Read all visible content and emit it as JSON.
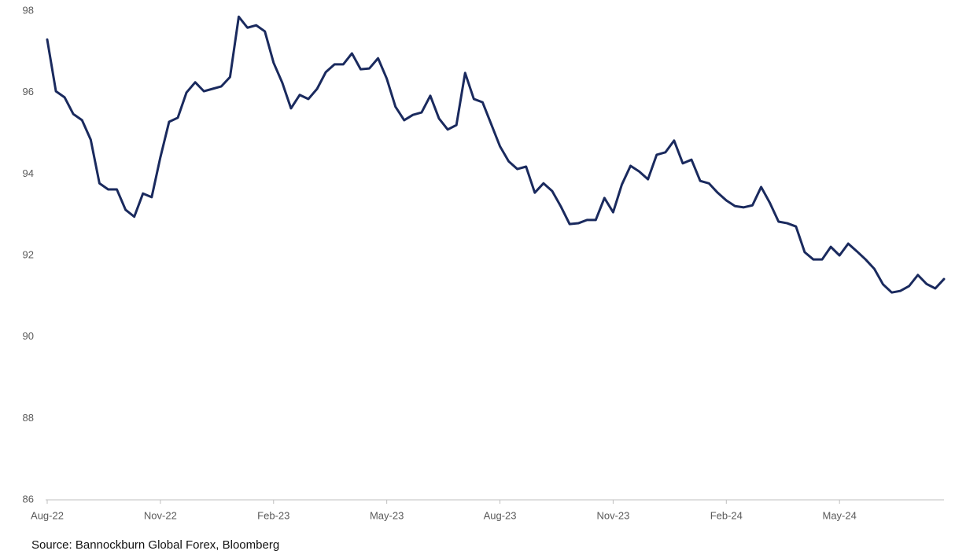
{
  "chart_data": {
    "type": "line",
    "source": "Source: Bannockburn Global Forex, Bloomberg",
    "color": "#1a2a5e",
    "grid": false,
    "ylim": [
      86,
      98
    ],
    "yticks": [
      86,
      88,
      90,
      92,
      94,
      96,
      98
    ],
    "categories": [
      "Aug-22",
      null,
      null,
      null,
      null,
      null,
      null,
      null,
      null,
      null,
      null,
      null,
      null,
      "Nov-22",
      null,
      null,
      null,
      null,
      null,
      null,
      null,
      null,
      null,
      null,
      null,
      null,
      "Feb-23",
      null,
      null,
      null,
      null,
      null,
      null,
      null,
      null,
      null,
      null,
      null,
      null,
      "May-23",
      null,
      null,
      null,
      null,
      null,
      null,
      null,
      null,
      null,
      null,
      null,
      null,
      "Aug-23",
      null,
      null,
      null,
      null,
      null,
      null,
      null,
      null,
      null,
      null,
      null,
      null,
      "Nov-23",
      null,
      null,
      null,
      null,
      null,
      null,
      null,
      null,
      null,
      null,
      null,
      null,
      "Feb-24",
      null,
      null,
      null,
      null,
      null,
      null,
      null,
      null,
      null,
      null,
      null,
      null,
      "May-24",
      null,
      null,
      null,
      null,
      null,
      null,
      null,
      null,
      null,
      null,
      null,
      null
    ],
    "values": [
      97.3,
      96.03,
      95.88,
      95.47,
      95.32,
      94.84,
      93.77,
      93.62,
      93.62,
      93.12,
      92.95,
      93.52,
      93.43,
      94.41,
      95.28,
      95.38,
      96.0,
      96.25,
      96.03,
      96.09,
      96.15,
      96.38,
      97.86,
      97.59,
      97.65,
      97.5,
      96.73,
      96.24,
      95.61,
      95.94,
      95.84,
      96.09,
      96.5,
      96.69,
      96.69,
      96.96,
      96.57,
      96.59,
      96.84,
      96.34,
      95.65,
      95.32,
      95.45,
      95.51,
      95.92,
      95.36,
      95.09,
      95.2,
      96.48,
      95.84,
      95.76,
      95.22,
      94.68,
      94.31,
      94.12,
      94.18,
      93.54,
      93.77,
      93.58,
      93.2,
      92.77,
      92.79,
      92.87,
      92.87,
      93.41,
      93.06,
      93.74,
      94.2,
      94.06,
      93.87,
      94.47,
      94.53,
      94.82,
      94.26,
      94.35,
      93.83,
      93.77,
      93.54,
      93.35,
      93.21,
      93.18,
      93.23,
      93.68,
      93.29,
      92.83,
      92.79,
      92.71,
      92.08,
      91.9,
      91.9,
      92.21,
      92.0,
      92.29,
      92.1,
      91.9,
      91.67,
      91.29,
      91.09,
      91.13,
      91.25,
      91.52,
      91.3,
      91.19,
      91.42
    ]
  }
}
